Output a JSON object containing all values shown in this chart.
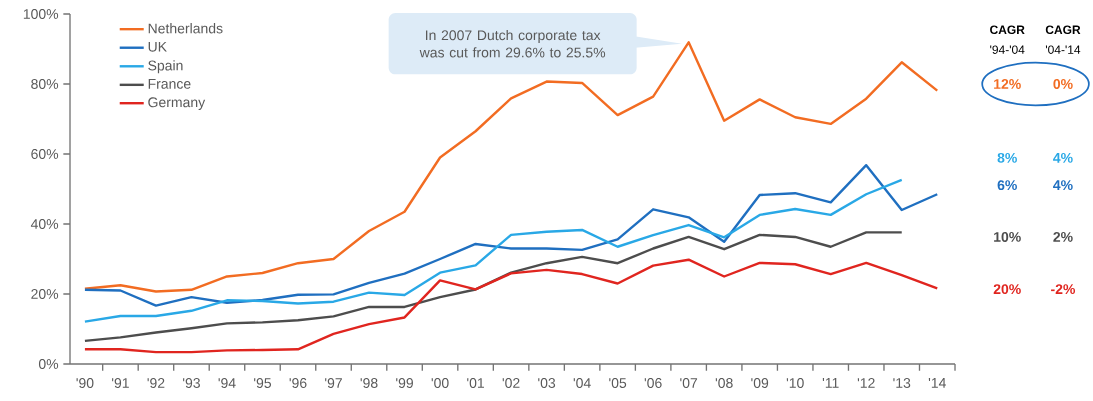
{
  "chart_data": {
    "type": "line",
    "categories": [
      "'90",
      "'91",
      "'92",
      "'93",
      "'94",
      "'95",
      "'96",
      "'97",
      "'98",
      "'99",
      "'00",
      "'01",
      "'02",
      "'03",
      "'04",
      "'05",
      "'06",
      "'07",
      "'08",
      "'09",
      "'10",
      "'11",
      "'12",
      "'13",
      "'14"
    ],
    "series": [
      {
        "name": "Netherlands",
        "color": "#f26c22",
        "values": [
          21.5,
          22.5,
          20.7,
          21.2,
          25,
          26,
          28.8,
          30,
          38,
          43.5,
          59,
          66.5,
          75.9,
          80.7,
          80.3,
          71.1,
          76.4,
          91.9,
          69.5,
          75.6,
          70.5,
          68.6,
          75.8,
          86.2,
          78.1
        ]
      },
      {
        "name": "UK",
        "color": "#1f6fc0",
        "values": [
          21.2,
          21,
          16.7,
          19.1,
          17.5,
          18.3,
          19.8,
          19.9,
          23.2,
          25.8,
          30,
          34.3,
          33,
          33,
          32.6,
          35.6,
          44.2,
          41.9,
          34.9,
          48.3,
          48.8,
          46.2,
          56.8,
          44,
          48.5
        ]
      },
      {
        "name": "Spain",
        "color": "#29a8e6",
        "values": [
          12.1,
          13.7,
          13.7,
          15.2,
          18.2,
          18,
          17.3,
          17.8,
          20.4,
          19.7,
          26.1,
          28.2,
          36.9,
          37.8,
          38.3,
          33.5,
          36.8,
          39.7,
          36.2,
          42.6,
          44.3,
          42.6,
          48.5,
          52.6,
          null
        ]
      },
      {
        "name": "France",
        "color": "#4d4d4d",
        "values": [
          6.6,
          7.6,
          9,
          10.2,
          11.6,
          11.9,
          12.5,
          13.6,
          16.3,
          16.3,
          19.1,
          21.3,
          26.1,
          28.8,
          30.6,
          28.8,
          33,
          36.3,
          32.8,
          36.9,
          36.3,
          33.5,
          37.6,
          37.6,
          null
        ]
      },
      {
        "name": "Germany",
        "color": "#e0251f",
        "values": [
          4.2,
          4.2,
          3.4,
          3.4,
          3.9,
          4,
          4.2,
          8.6,
          11.4,
          13.3,
          23.9,
          21.3,
          25.9,
          26.9,
          25.7,
          23,
          28.1,
          29.8,
          25,
          28.9,
          28.5,
          25.7,
          28.9,
          25.4,
          21.6
        ]
      }
    ],
    "ylim": [
      0,
      100
    ],
    "yticks": [
      {
        "value": 0,
        "label": "0%"
      },
      {
        "value": 20,
        "label": "20%"
      },
      {
        "value": 40,
        "label": "40%"
      },
      {
        "value": 60,
        "label": "60%"
      },
      {
        "value": 80,
        "label": "80%"
      },
      {
        "value": 100,
        "label": "100%"
      }
    ],
    "grid": false,
    "legend": "top left",
    "marker": "none",
    "line_style": "solid",
    "annotations": [
      {
        "text": "In 2007 Dutch corporate tax was cut from 29.6% to 25.5%",
        "x": "'07",
        "y": 91.9
      },
      "CAGR",
      "'94-'04",
      "CAGR",
      "'04-'14",
      "12%",
      "0%",
      "8%",
      "4%",
      "6%",
      "4%",
      "10%",
      "2%",
      "20%",
      "-2%"
    ]
  }
}
